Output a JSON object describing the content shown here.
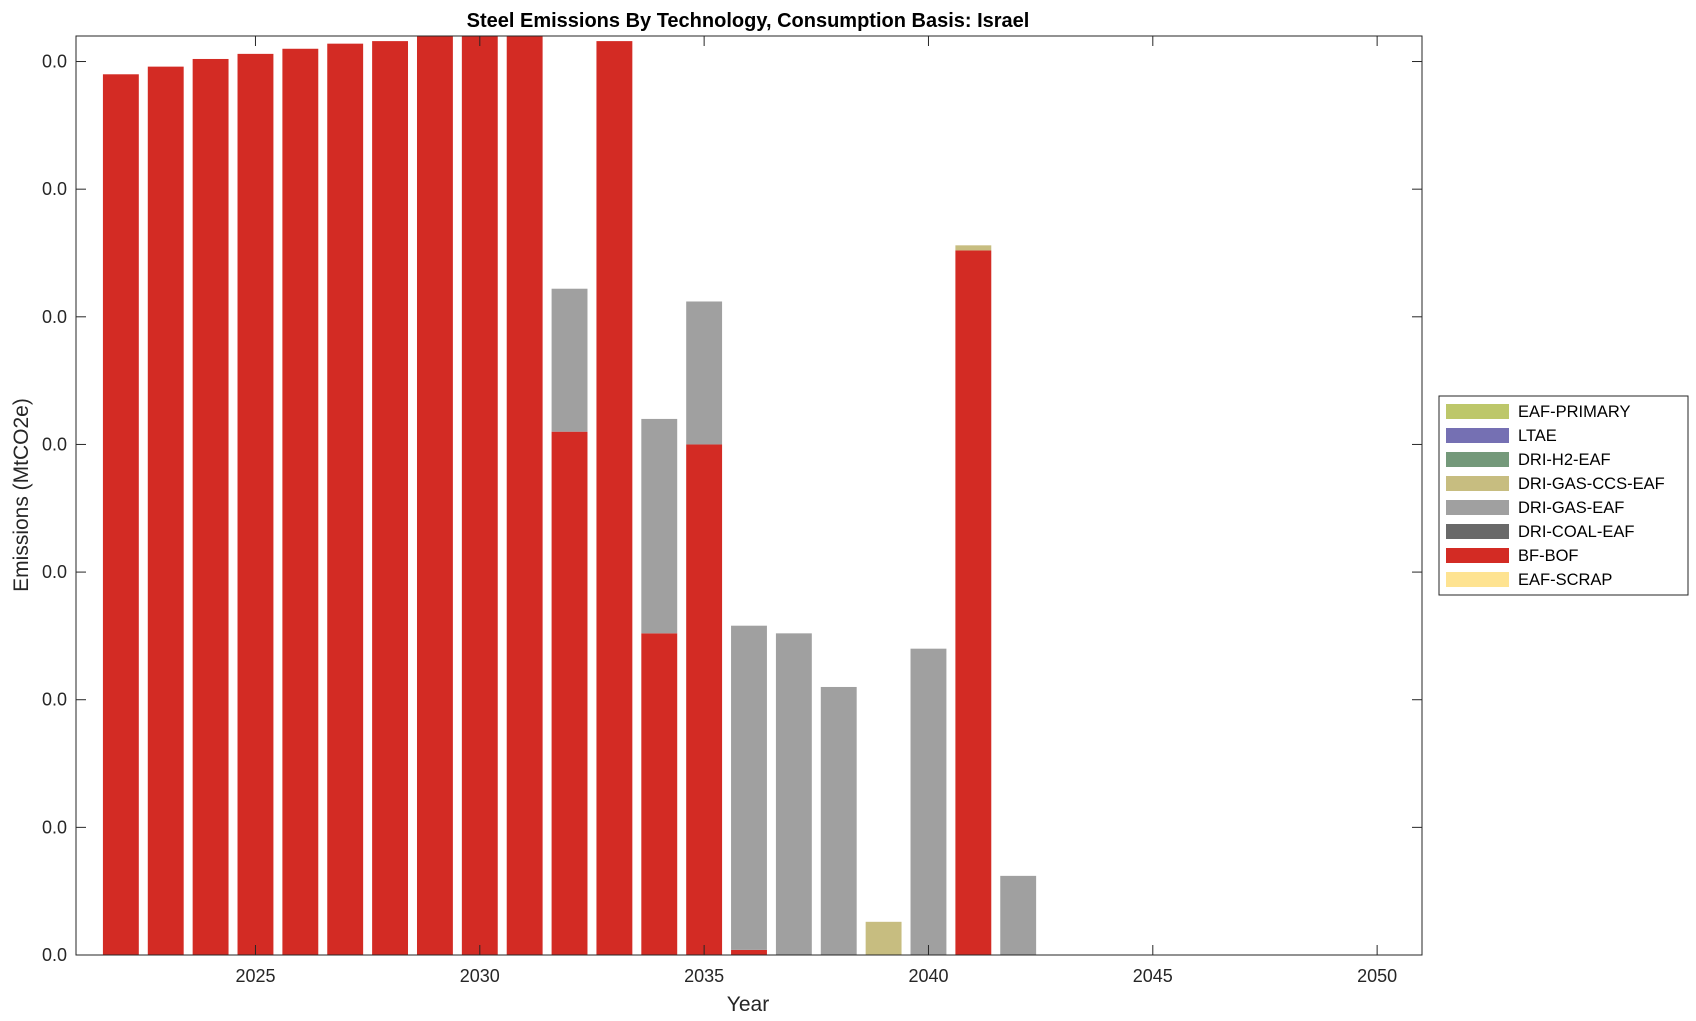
{
  "chart_data": {
    "type": "bar",
    "stacked": true,
    "title": "Steel Emissions By Technology, Consumption Basis: Israel",
    "xlabel": "Year",
    "ylabel": "Emissions (MtCO2e)",
    "xlim": [
      2021,
      2051
    ],
    "ylim": [
      0,
      0.0036
    ],
    "xticks": [
      2025,
      2030,
      2035,
      2040,
      2045,
      2050
    ],
    "yticks": [
      0,
      0.0005,
      0.001,
      0.0015,
      0.002,
      0.0025,
      0.003,
      0.0035
    ],
    "ytick_labels": [
      "0.0",
      "0.0",
      "0.0",
      "0.0",
      "0.0",
      "0.0",
      "0.0",
      "0.0"
    ],
    "grid": false,
    "legend_position": "outside-right",
    "years": [
      2022,
      2023,
      2024,
      2025,
      2026,
      2027,
      2028,
      2029,
      2030,
      2031,
      2032,
      2033,
      2034,
      2035,
      2036,
      2037,
      2038,
      2039,
      2040,
      2041,
      2042,
      2043,
      2044,
      2045,
      2046,
      2047,
      2048,
      2049,
      2050
    ],
    "series": [
      {
        "name": "EAF-SCRAP",
        "color": "#fee391",
        "values": [
          0,
          0,
          0,
          0,
          0,
          0,
          0,
          0,
          0,
          0,
          0,
          0,
          0,
          0,
          0,
          0,
          0,
          0,
          0,
          0,
          0,
          0,
          0,
          0,
          0,
          0,
          0,
          0,
          0
        ]
      },
      {
        "name": "BF-BOF",
        "color": "#d32b24",
        "values": [
          0.00345,
          0.00348,
          0.00351,
          0.00353,
          0.00355,
          0.00357,
          0.00358,
          0.0036,
          0.0036,
          0.0036,
          0.00205,
          0.00358,
          0.00126,
          0.002,
          2e-05,
          0,
          0,
          0,
          0,
          0.00276,
          0,
          0,
          0,
          0,
          0,
          0,
          0,
          0,
          0
        ]
      },
      {
        "name": "DRI-COAL-EAF",
        "color": "#696969",
        "values": [
          0,
          0,
          0,
          0,
          0,
          0,
          0,
          0,
          0,
          0,
          0,
          0,
          0,
          0,
          0,
          0,
          0,
          0,
          0,
          0,
          0,
          0,
          0,
          0,
          0,
          0,
          0,
          0,
          0
        ]
      },
      {
        "name": "DRI-GAS-EAF",
        "color": "#a0a0a0",
        "values": [
          0,
          0,
          0,
          0,
          0,
          0,
          0,
          0,
          0,
          0,
          0.00056,
          0,
          0.00084,
          0.00056,
          0.00127,
          0.00126,
          0.00105,
          0,
          0.0012,
          0,
          0.00031,
          0,
          0,
          0,
          0,
          0,
          0,
          0,
          0
        ]
      },
      {
        "name": "DRI-GAS-CCS-EAF",
        "color": "#c7bd80",
        "values": [
          0,
          0,
          0,
          0,
          0,
          0,
          0,
          0,
          0,
          0,
          0,
          0,
          0,
          0,
          0,
          0,
          0,
          0.00013,
          0,
          2e-05,
          0,
          0,
          0,
          0,
          0,
          0,
          0,
          0,
          0
        ]
      },
      {
        "name": "DRI-H2-EAF",
        "color": "#74997a",
        "values": [
          0,
          0,
          0,
          0,
          0,
          0,
          0,
          0,
          0,
          0,
          0,
          0,
          0,
          0,
          0,
          0,
          0,
          0,
          0,
          0,
          0,
          0,
          0,
          0,
          0,
          0,
          0,
          0,
          0
        ]
      },
      {
        "name": "LTAE",
        "color": "#7570b3",
        "values": [
          0,
          0,
          0,
          0,
          0,
          0,
          0,
          0,
          0,
          0,
          0,
          0,
          0,
          0,
          0,
          0,
          0,
          0,
          0,
          0,
          0,
          0,
          0,
          0,
          0,
          0,
          0,
          0,
          0
        ]
      },
      {
        "name": "EAF-PRIMARY",
        "color": "#bdc76a",
        "values": [
          0,
          0,
          0,
          0,
          0,
          0,
          0,
          0,
          0,
          0,
          0,
          0,
          0,
          0,
          0,
          0,
          0,
          0,
          0,
          0,
          0,
          0,
          0,
          0,
          0,
          0,
          0,
          0,
          0
        ]
      }
    ],
    "legend_order": [
      "EAF-PRIMARY",
      "LTAE",
      "DRI-H2-EAF",
      "DRI-GAS-CCS-EAF",
      "DRI-GAS-EAF",
      "DRI-COAL-EAF",
      "BF-BOF",
      "EAF-SCRAP"
    ]
  }
}
